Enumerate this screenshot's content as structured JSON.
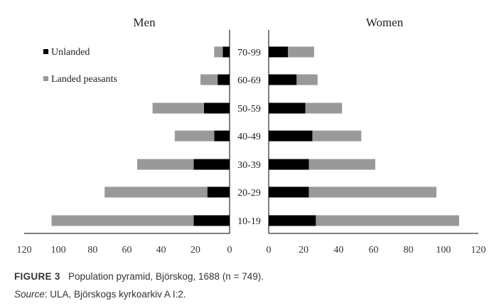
{
  "chart_data": {
    "type": "bar",
    "subtype": "population-pyramid-stacked",
    "panels": [
      {
        "title": "Men",
        "xlim": [
          0,
          120
        ],
        "direction": "right-to-left",
        "ticks": [
          "120",
          "100",
          "80",
          "60",
          "40",
          "20",
          "0"
        ]
      },
      {
        "title": "Women",
        "xlim": [
          0,
          120
        ],
        "direction": "left-to-right",
        "ticks": [
          "0",
          "20",
          "40",
          "60",
          "80",
          "100",
          "120"
        ]
      }
    ],
    "categories": [
      "10-19",
      "20-29",
      "30-39",
      "40-49",
      "50-59",
      "60-69",
      "70-99"
    ],
    "series": [
      {
        "name": "Unlanded",
        "color": "#000000",
        "men": [
          21,
          13,
          21,
          9,
          15,
          7,
          4
        ],
        "women": [
          27,
          23,
          23,
          25,
          21,
          16,
          11
        ]
      },
      {
        "name": "Landed peasants",
        "color": "#999999",
        "men": [
          83,
          60,
          33,
          23,
          30,
          10,
          5
        ],
        "women": [
          82,
          73,
          38,
          28,
          21,
          12,
          15
        ]
      }
    ],
    "legend": {
      "position": "top-left (Men panel)"
    },
    "grid": false
  },
  "caption": {
    "label": "FIGURE 3",
    "text": "Population pyramid, Björskog, 1688 (n = 749).",
    "source_label": "Source",
    "source_text": ": ULA, Björskogs kyrkoarkiv A I:2."
  }
}
